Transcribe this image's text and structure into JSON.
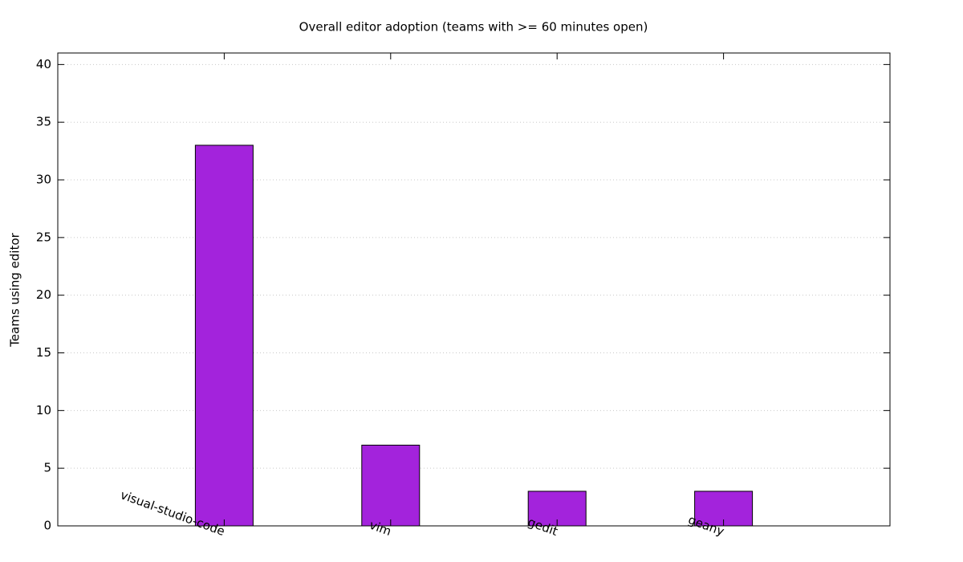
{
  "chart_data": {
    "type": "bar",
    "title": "Overall editor adoption (teams with >= 60 minutes open)",
    "y_label": "Teams using editor",
    "categories": [
      "visual-studio-code",
      "vim",
      "gedit",
      "geany"
    ],
    "values": [
      33,
      7,
      3,
      3
    ],
    "color": "#a323dc",
    "ylim": [
      0,
      41
    ],
    "yticks": [
      0,
      5,
      10,
      15,
      20,
      25,
      30,
      35,
      40
    ],
    "grid": true
  }
}
